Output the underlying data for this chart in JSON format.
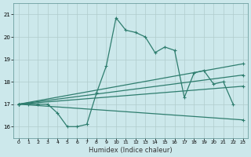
{
  "xlabel": "Humidex (Indice chaleur)",
  "background_color": "#cce8eb",
  "line_color": "#2e7d6e",
  "grid_color": "#b0cccc",
  "xlim": [
    -0.5,
    23.5
  ],
  "ylim": [
    15.5,
    21.5
  ],
  "xticks": [
    0,
    1,
    2,
    3,
    4,
    5,
    6,
    7,
    8,
    9,
    10,
    11,
    12,
    13,
    14,
    15,
    16,
    17,
    18,
    19,
    20,
    21,
    22,
    23
  ],
  "yticks": [
    16,
    17,
    18,
    19,
    20,
    21
  ],
  "series_main": {
    "x": [
      0,
      1,
      2,
      3,
      4,
      5,
      6,
      7,
      8,
      9,
      10,
      11,
      12,
      13,
      14,
      15,
      16,
      17,
      18,
      19,
      20,
      21,
      22
    ],
    "y": [
      17.0,
      17.0,
      17.0,
      17.0,
      16.6,
      16.0,
      16.0,
      16.1,
      17.5,
      18.7,
      20.85,
      20.3,
      20.2,
      20.0,
      19.3,
      19.55,
      19.4,
      17.3,
      18.4,
      18.5,
      17.9,
      18.0,
      17.0
    ]
  },
  "line_down": {
    "x": [
      0,
      23
    ],
    "y": [
      17.0,
      16.3
    ]
  },
  "line_mid1": {
    "x": [
      0,
      23
    ],
    "y": [
      17.0,
      17.8
    ]
  },
  "line_mid2": {
    "x": [
      0,
      23
    ],
    "y": [
      17.0,
      18.3
    ]
  },
  "line_up": {
    "x": [
      0,
      23
    ],
    "y": [
      17.0,
      18.8
    ]
  }
}
